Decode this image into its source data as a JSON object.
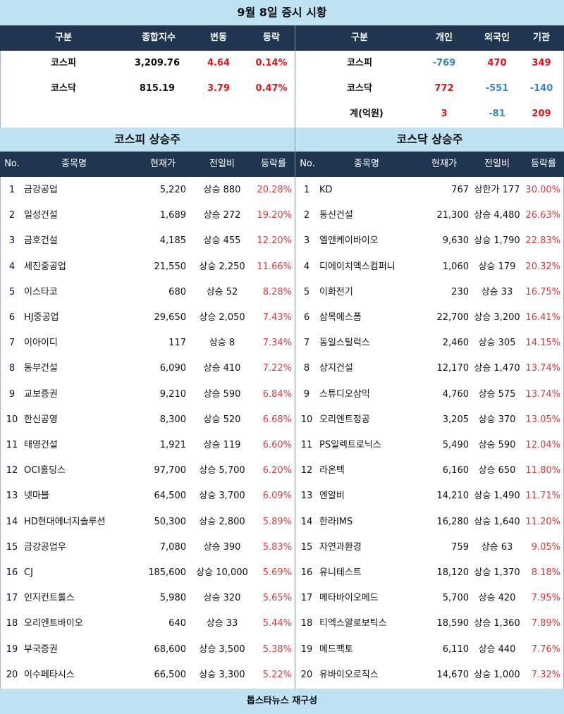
{
  "title": "9월 8일 증시 시황",
  "summary_left": {
    "headers": [
      "구분",
      "종합지수",
      "변동",
      "등락"
    ],
    "rows": [
      {
        "name": "코스피",
        "index": "3,209.76",
        "change": "4.64",
        "rate": "0.14%"
      },
      {
        "name": "코스닥",
        "index": "815.19",
        "change": "3.79",
        "rate": "0.47%"
      }
    ]
  },
  "summary_right": {
    "headers": [
      "구분",
      "개인",
      "외국인",
      "기관"
    ],
    "rows": [
      {
        "name": "코스피",
        "individual": "-769",
        "foreign": "470",
        "institution": "349"
      },
      {
        "name": "코스닥",
        "individual": "772",
        "foreign": "-551",
        "institution": "-140"
      },
      {
        "name": "계(억원)",
        "individual": "3",
        "foreign": "-81",
        "institution": "209"
      }
    ]
  },
  "kospi": {
    "title": "코스피 상승주",
    "headers": [
      "No.",
      "종목명",
      "현재가",
      "전일비",
      "등락률"
    ],
    "rows": [
      {
        "no": "1",
        "name": "금강공업",
        "price": "5,220",
        "diff": "상승 880",
        "rate": "20.28%"
      },
      {
        "no": "2",
        "name": "일성건설",
        "price": "1,689",
        "diff": "상승 272",
        "rate": "19.20%"
      },
      {
        "no": "3",
        "name": "금호건설",
        "price": "4,185",
        "diff": "상승 455",
        "rate": "12.20%"
      },
      {
        "no": "4",
        "name": "세진중공업",
        "price": "21,550",
        "diff": "상승 2,250",
        "rate": "11.66%"
      },
      {
        "no": "5",
        "name": "이스타코",
        "price": "680",
        "diff": "상승 52",
        "rate": "8.28%"
      },
      {
        "no": "6",
        "name": "HJ중공업",
        "price": "29,650",
        "diff": "상승 2,050",
        "rate": "7.43%"
      },
      {
        "no": "7",
        "name": "이아이디",
        "price": "117",
        "diff": "상승 8",
        "rate": "7.34%"
      },
      {
        "no": "8",
        "name": "동부건설",
        "price": "6,090",
        "diff": "상승 410",
        "rate": "7.22%"
      },
      {
        "no": "9",
        "name": "교보증권",
        "price": "9,210",
        "diff": "상승 590",
        "rate": "6.84%"
      },
      {
        "no": "10",
        "name": "한신공영",
        "price": "8,300",
        "diff": "상승 520",
        "rate": "6.68%"
      },
      {
        "no": "11",
        "name": "태영건설",
        "price": "1,921",
        "diff": "상승 119",
        "rate": "6.60%"
      },
      {
        "no": "12",
        "name": "OCI홀딩스",
        "price": "97,700",
        "diff": "상승 5,700",
        "rate": "6.20%"
      },
      {
        "no": "13",
        "name": "넷마블",
        "price": "64,500",
        "diff": "상승 3,700",
        "rate": "6.09%"
      },
      {
        "no": "14",
        "name": "HD현대에너지솔루션",
        "price": "50,300",
        "diff": "상승 2,800",
        "rate": "5.89%"
      },
      {
        "no": "15",
        "name": "금강공업우",
        "price": "7,080",
        "diff": "상승 390",
        "rate": "5.83%"
      },
      {
        "no": "16",
        "name": "CJ",
        "price": "185,600",
        "diff": "상승 10,000",
        "rate": "5.69%"
      },
      {
        "no": "17",
        "name": "인지컨트롤스",
        "price": "5,980",
        "diff": "상승 320",
        "rate": "5.65%"
      },
      {
        "no": "18",
        "name": "오리엔트바이오",
        "price": "640",
        "diff": "상승 33",
        "rate": "5.44%"
      },
      {
        "no": "19",
        "name": "부국증권",
        "price": "68,600",
        "diff": "상승 3,500",
        "rate": "5.38%"
      },
      {
        "no": "20",
        "name": "이수페타시스",
        "price": "66,500",
        "diff": "상승 3,300",
        "rate": "5.22%"
      }
    ]
  },
  "kosdaq": {
    "title": "코스닥 상승주",
    "headers": [
      "No.",
      "종목명",
      "현재가",
      "전일비",
      "등락률"
    ],
    "rows": [
      {
        "no": "1",
        "name": "KD",
        "price": "767",
        "diff": "상한가 177",
        "rate": "30.00%"
      },
      {
        "no": "2",
        "name": "동신건설",
        "price": "21,300",
        "diff": "상승 4,480",
        "rate": "26.63%"
      },
      {
        "no": "3",
        "name": "엘앤케이바이오",
        "price": "9,630",
        "diff": "상승 1,790",
        "rate": "22.83%"
      },
      {
        "no": "4",
        "name": "디에이치엑스컴퍼니",
        "price": "1,060",
        "diff": "상승 179",
        "rate": "20.32%"
      },
      {
        "no": "5",
        "name": "이화전기",
        "price": "230",
        "diff": "상승 33",
        "rate": "16.75%"
      },
      {
        "no": "6",
        "name": "삼목에스폼",
        "price": "22,700",
        "diff": "상승 3,200",
        "rate": "16.41%"
      },
      {
        "no": "7",
        "name": "동일스틸럭스",
        "price": "2,460",
        "diff": "상승 305",
        "rate": "14.15%"
      },
      {
        "no": "8",
        "name": "상지건설",
        "price": "12,170",
        "diff": "상승 1,470",
        "rate": "13.74%"
      },
      {
        "no": "9",
        "name": "스튜디오삼익",
        "price": "4,760",
        "diff": "상승 575",
        "rate": "13.74%"
      },
      {
        "no": "10",
        "name": "오리엔트정공",
        "price": "3,205",
        "diff": "상승 370",
        "rate": "13.05%"
      },
      {
        "no": "11",
        "name": "PS일렉트로닉스",
        "price": "5,490",
        "diff": "상승 590",
        "rate": "12.04%"
      },
      {
        "no": "12",
        "name": "라온텍",
        "price": "6,160",
        "diff": "상승 650",
        "rate": "11.80%"
      },
      {
        "no": "13",
        "name": "엔알비",
        "price": "14,210",
        "diff": "상승 1,490",
        "rate": "11.71%"
      },
      {
        "no": "14",
        "name": "한라IMS",
        "price": "16,280",
        "diff": "상승 1,640",
        "rate": "11.20%"
      },
      {
        "no": "15",
        "name": "자연과환경",
        "price": "759",
        "diff": "상승 63",
        "rate": "9.05%"
      },
      {
        "no": "16",
        "name": "유니테스트",
        "price": "18,120",
        "diff": "상승 1,370",
        "rate": "8.18%"
      },
      {
        "no": "17",
        "name": "메타바이오메드",
        "price": "5,700",
        "diff": "상승 420",
        "rate": "7.95%"
      },
      {
        "no": "18",
        "name": "티엑스알로보틱스",
        "price": "18,590",
        "diff": "상승 1,360",
        "rate": "7.89%"
      },
      {
        "no": "19",
        "name": "메드팩토",
        "price": "6,110",
        "diff": "상승 440",
        "rate": "7.76%"
      },
      {
        "no": "20",
        "name": "유바이오로직스",
        "price": "14,670",
        "diff": "상승 1,000",
        "rate": "7.32%"
      }
    ]
  },
  "footer": "톱스타뉴스 재구성",
  "colors": {
    "header_navy": "#1f3550",
    "band_blue": "#bfe3f3",
    "up_red": "#e0151b",
    "down_blue": "#3b84c9"
  }
}
